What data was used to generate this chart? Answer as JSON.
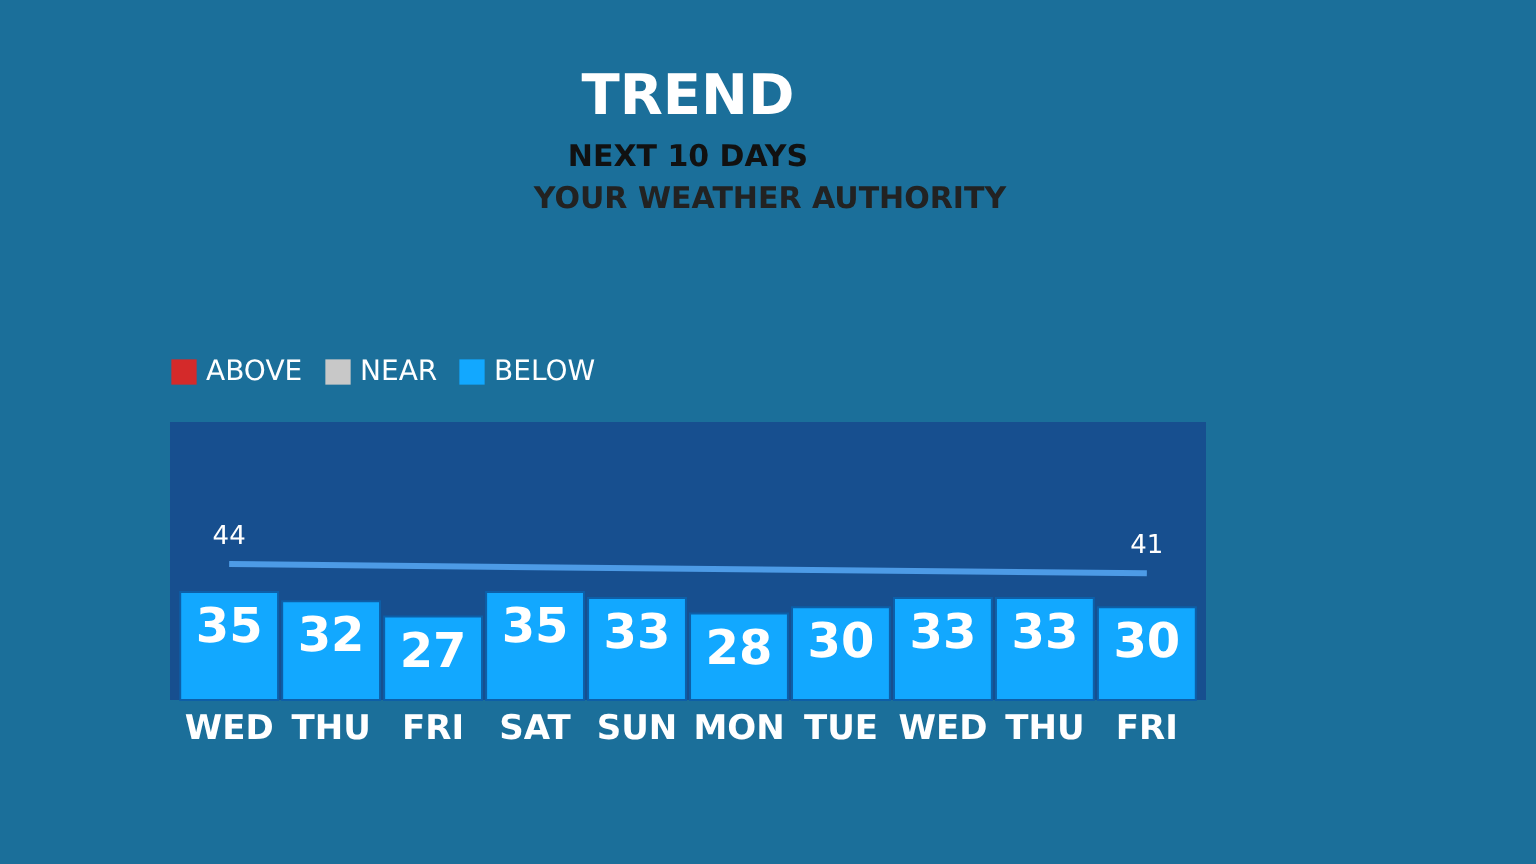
{
  "chart_data": {
    "type": "bar",
    "title": "TREND",
    "subtitle": "NEXT 10 DAYS",
    "annotations": [
      "YOUR WEATHER AUTHORITY"
    ],
    "categories": [
      "WED",
      "THU",
      "FRI",
      "SAT",
      "SUN",
      "MON",
      "TUE",
      "WED",
      "THU",
      "FRI"
    ],
    "series": [
      {
        "name": "ABOVE",
        "color": "#d42a2a",
        "values": [
          null,
          null,
          null,
          null,
          null,
          null,
          null,
          null,
          null,
          null
        ]
      },
      {
        "name": "NEAR",
        "color": "#c8c8c8",
        "values": [
          null,
          null,
          null,
          null,
          null,
          null,
          null,
          null,
          null,
          null
        ]
      },
      {
        "name": "BELOW",
        "color": "#12a8ff",
        "values": [
          35,
          32,
          27,
          35,
          33,
          28,
          30,
          33,
          33,
          30
        ]
      },
      {
        "type": "line",
        "color": "#4d9be6",
        "values": [
          44,
          null,
          null,
          null,
          null,
          null,
          null,
          null,
          null,
          41
        ]
      }
    ],
    "ylim": [
      0,
      90
    ],
    "tick_labels": "x",
    "data_labels": true,
    "legend": "top",
    "grid": false
  }
}
